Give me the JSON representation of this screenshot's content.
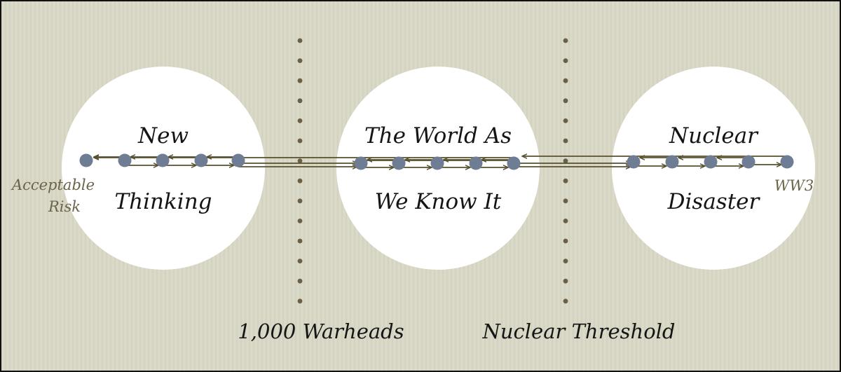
{
  "circles": [
    {
      "id": "new-thinking",
      "line1": "New",
      "line2": "Thinking"
    },
    {
      "id": "world-as-we-know-it",
      "line1": "The World As",
      "line2": "We Know It"
    },
    {
      "id": "nuclear-disaster",
      "line1": "Nuclear",
      "line2": "Disaster"
    }
  ],
  "endpoints": {
    "left_line1": "Acceptable",
    "left_line2": "Risk",
    "right": "WW3"
  },
  "dividers": [
    {
      "id": "warheads",
      "label": "1,000 Warheads"
    },
    {
      "id": "threshold",
      "label": "Nuclear Threshold"
    }
  ],
  "colors": {
    "background": "#d9d8c6",
    "circle_fill": "#ffffff",
    "node_fill": "#6f7d94",
    "arrow": "#57502f",
    "divider_dot": "#6a5f47",
    "endpoint_text": "#6b6448",
    "label_text": "#151515",
    "border": "#111111"
  }
}
